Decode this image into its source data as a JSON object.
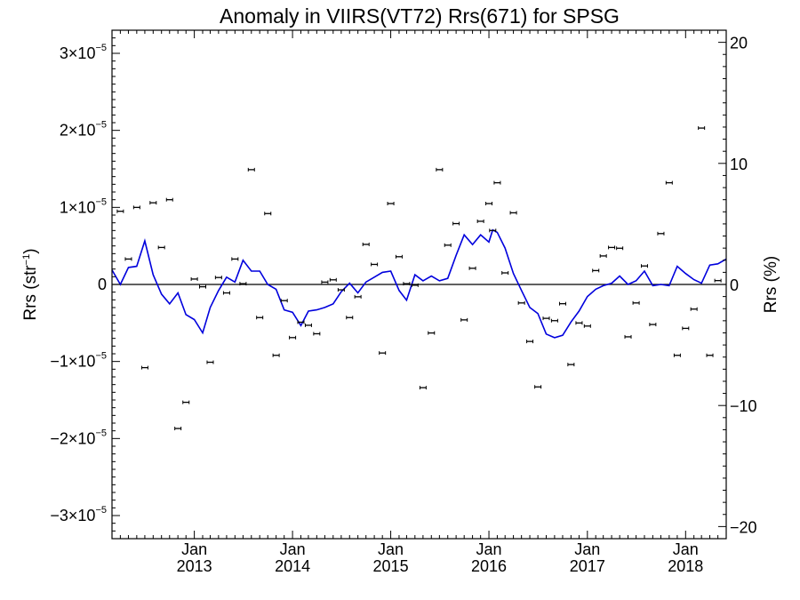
{
  "chart_data": {
    "type": "line",
    "title": "Anomaly in VIIRS(VT72) Rrs(671) for SPSG",
    "ylabel_left": "Rrs (str",
    "ylabel_left_sup": "−1",
    "ylabel_left_close": ")",
    "ylabel_right": "Rrs (%)",
    "y_left_range": [
      -3.3e-05,
      3.3e-05
    ],
    "y_right_range": [
      -21,
      21
    ],
    "x_range": [
      "2012-03-01",
      "2018-06-01"
    ],
    "left_ticks": [
      {
        "value": 3e-05,
        "mant": "3×10",
        "exp": "−5"
      },
      {
        "value": 2e-05,
        "mant": "2×10",
        "exp": "−5"
      },
      {
        "value": 1e-05,
        "mant": "1×10",
        "exp": "−5"
      },
      {
        "value": 0,
        "mant": "0",
        "exp": ""
      },
      {
        "value": -1e-05,
        "mant": "−1×10",
        "exp": "−5"
      },
      {
        "value": -2e-05,
        "mant": "−2×10",
        "exp": "−5"
      },
      {
        "value": -3e-05,
        "mant": "−3×10",
        "exp": "−5"
      }
    ],
    "right_ticks": [
      {
        "value": 20,
        "label": "20"
      },
      {
        "value": 10,
        "label": "10"
      },
      {
        "value": 0,
        "label": "0"
      },
      {
        "value": -10,
        "label": "−10"
      },
      {
        "value": -20,
        "label": "−20"
      }
    ],
    "x_ticks": [
      {
        "date": "2013-01-01",
        "month": "Jan",
        "year": "2013"
      },
      {
        "date": "2014-01-01",
        "month": "Jan",
        "year": "2014"
      },
      {
        "date": "2015-01-01",
        "month": "Jan",
        "year": "2015"
      },
      {
        "date": "2016-01-01",
        "month": "Jan",
        "year": "2016"
      },
      {
        "date": "2017-01-01",
        "month": "Jan",
        "year": "2017"
      },
      {
        "date": "2018-01-01",
        "month": "Jan",
        "year": "2018"
      }
    ],
    "zero_line": true,
    "monthly_anomaly": {
      "name": "",
      "style": "points with error bars",
      "color": "#000000",
      "points": [
        {
          "x": "2012-04-01",
          "y": 9.5e-06
        },
        {
          "x": "2012-05-01",
          "y": 3.3e-06
        },
        {
          "x": "2012-06-01",
          "y": 1e-05
        },
        {
          "x": "2012-07-01",
          "y": -1.08e-05
        },
        {
          "x": "2012-08-01",
          "y": 1.06e-05
        },
        {
          "x": "2012-09-01",
          "y": 4.8e-06
        },
        {
          "x": "2012-10-01",
          "y": 1.1e-05
        },
        {
          "x": "2012-11-01",
          "y": -1.87e-05
        },
        {
          "x": "2012-12-01",
          "y": -1.53e-05
        },
        {
          "x": "2013-01-01",
          "y": 7e-07
        },
        {
          "x": "2013-02-01",
          "y": -3e-07
        },
        {
          "x": "2013-03-01",
          "y": -1.01e-05
        },
        {
          "x": "2013-04-01",
          "y": 9e-07
        },
        {
          "x": "2013-05-01",
          "y": -1.1e-06
        },
        {
          "x": "2013-06-01",
          "y": 3.3e-06
        },
        {
          "x": "2013-07-01",
          "y": 1e-07
        },
        {
          "x": "2013-08-01",
          "y": 1.49e-05
        },
        {
          "x": "2013-09-01",
          "y": -4.3e-06
        },
        {
          "x": "2013-10-01",
          "y": 9.2e-06
        },
        {
          "x": "2013-11-01",
          "y": -9.2e-06
        },
        {
          "x": "2013-12-01",
          "y": -2.1e-06
        },
        {
          "x": "2014-01-01",
          "y": -6.9e-06
        },
        {
          "x": "2014-02-01",
          "y": -4.9e-06
        },
        {
          "x": "2014-03-01",
          "y": -5.3e-06
        },
        {
          "x": "2014-04-01",
          "y": -6.4e-06
        },
        {
          "x": "2014-05-01",
          "y": 3e-07
        },
        {
          "x": "2014-06-01",
          "y": 6e-07
        },
        {
          "x": "2014-07-01",
          "y": -7e-07
        },
        {
          "x": "2014-08-01",
          "y": -4.3e-06
        },
        {
          "x": "2014-09-01",
          "y": -1.6e-06
        },
        {
          "x": "2014-10-01",
          "y": 5.2e-06
        },
        {
          "x": "2014-11-01",
          "y": 2.6e-06
        },
        {
          "x": "2014-12-01",
          "y": -8.9e-06
        },
        {
          "x": "2015-01-01",
          "y": 1.05e-05
        },
        {
          "x": "2015-02-01",
          "y": 3.6e-06
        },
        {
          "x": "2015-03-01",
          "y": 1e-07
        },
        {
          "x": "2015-04-01",
          "y": -1e-07
        },
        {
          "x": "2015-05-01",
          "y": -1.34e-05
        },
        {
          "x": "2015-06-01",
          "y": -6.3e-06
        },
        {
          "x": "2015-07-01",
          "y": 1.49e-05
        },
        {
          "x": "2015-08-01",
          "y": 5.1e-06
        },
        {
          "x": "2015-09-01",
          "y": 7.9e-06
        },
        {
          "x": "2015-10-01",
          "y": -4.6e-06
        },
        {
          "x": "2015-11-01",
          "y": 2.1e-06
        },
        {
          "x": "2015-12-01",
          "y": 8.2e-06
        },
        {
          "x": "2016-01-01",
          "y": 1.05e-05
        },
        {
          "x": "2016-01-15",
          "y": 7e-06
        },
        {
          "x": "2016-02-01",
          "y": 1.32e-05
        },
        {
          "x": "2016-03-01",
          "y": 1.5e-06
        },
        {
          "x": "2016-04-01",
          "y": 9.3e-06
        },
        {
          "x": "2016-05-01",
          "y": -2.4e-06
        },
        {
          "x": "2016-06-01",
          "y": -7.4e-06
        },
        {
          "x": "2016-07-01",
          "y": -1.33e-05
        },
        {
          "x": "2016-08-01",
          "y": -4.4e-06
        },
        {
          "x": "2016-09-01",
          "y": -4.7e-06
        },
        {
          "x": "2016-10-01",
          "y": -2.5e-06
        },
        {
          "x": "2016-11-01",
          "y": -1.04e-05
        },
        {
          "x": "2016-12-01",
          "y": -5e-06
        },
        {
          "x": "2017-01-01",
          "y": -5.4e-06
        },
        {
          "x": "2017-02-01",
          "y": 1.8e-06
        },
        {
          "x": "2017-03-01",
          "y": 3.7e-06
        },
        {
          "x": "2017-04-01",
          "y": 4.8e-06
        },
        {
          "x": "2017-05-01",
          "y": 4.7e-06
        },
        {
          "x": "2017-06-01",
          "y": -6.8e-06
        },
        {
          "x": "2017-07-01",
          "y": -2.4e-06
        },
        {
          "x": "2017-08-01",
          "y": 2.4e-06
        },
        {
          "x": "2017-09-01",
          "y": -5.2e-06
        },
        {
          "x": "2017-10-01",
          "y": 6.6e-06
        },
        {
          "x": "2017-11-01",
          "y": 1.32e-05
        },
        {
          "x": "2017-12-01",
          "y": -9.2e-06
        },
        {
          "x": "2018-01-01",
          "y": -5.7e-06
        },
        {
          "x": "2018-02-01",
          "y": -3.2e-06
        },
        {
          "x": "2018-03-01",
          "y": 2.03e-05
        },
        {
          "x": "2018-04-01",
          "y": -9.2e-06
        },
        {
          "x": "2018-05-01",
          "y": 5e-07
        }
      ]
    },
    "percent_anomaly": {
      "name": "",
      "style": "line",
      "color": "#0000dd",
      "points": [
        {
          "x": "2012-03-01",
          "y": 1.2
        },
        {
          "x": "2012-04-01",
          "y": 0.0
        },
        {
          "x": "2012-05-01",
          "y": 1.4
        },
        {
          "x": "2012-06-01",
          "y": 1.5
        },
        {
          "x": "2012-07-01",
          "y": 3.6
        },
        {
          "x": "2012-08-01",
          "y": 0.8
        },
        {
          "x": "2012-09-01",
          "y": -0.8
        },
        {
          "x": "2012-10-01",
          "y": -1.6
        },
        {
          "x": "2012-11-01",
          "y": -0.7
        },
        {
          "x": "2012-12-01",
          "y": -2.5
        },
        {
          "x": "2013-01-01",
          "y": -2.9
        },
        {
          "x": "2013-02-01",
          "y": -4.0
        },
        {
          "x": "2013-03-01",
          "y": -1.9
        },
        {
          "x": "2013-04-01",
          "y": -0.5
        },
        {
          "x": "2013-05-01",
          "y": 0.6
        },
        {
          "x": "2013-06-01",
          "y": 0.2
        },
        {
          "x": "2013-07-01",
          "y": 2.0
        },
        {
          "x": "2013-08-01",
          "y": 1.1
        },
        {
          "x": "2013-09-01",
          "y": 1.1
        },
        {
          "x": "2013-10-01",
          "y": 0.0
        },
        {
          "x": "2013-11-01",
          "y": -0.4
        },
        {
          "x": "2013-12-01",
          "y": -2.1
        },
        {
          "x": "2014-01-01",
          "y": -2.3
        },
        {
          "x": "2014-02-01",
          "y": -3.4
        },
        {
          "x": "2014-03-01",
          "y": -2.2
        },
        {
          "x": "2014-04-01",
          "y": -2.1
        },
        {
          "x": "2014-05-01",
          "y": -1.9
        },
        {
          "x": "2014-06-01",
          "y": -1.6
        },
        {
          "x": "2014-07-01",
          "y": -0.6
        },
        {
          "x": "2014-08-01",
          "y": 0.1
        },
        {
          "x": "2014-09-01",
          "y": -0.7
        },
        {
          "x": "2014-10-01",
          "y": 0.2
        },
        {
          "x": "2014-11-01",
          "y": 0.6
        },
        {
          "x": "2014-12-01",
          "y": 1.0
        },
        {
          "x": "2015-01-01",
          "y": 1.1
        },
        {
          "x": "2015-02-01",
          "y": -0.5
        },
        {
          "x": "2015-03-01",
          "y": -1.3
        },
        {
          "x": "2015-04-01",
          "y": 0.8
        },
        {
          "x": "2015-05-01",
          "y": 0.3
        },
        {
          "x": "2015-06-01",
          "y": 0.7
        },
        {
          "x": "2015-07-01",
          "y": 0.3
        },
        {
          "x": "2015-08-01",
          "y": 0.5
        },
        {
          "x": "2015-09-01",
          "y": 2.4
        },
        {
          "x": "2015-10-01",
          "y": 4.1
        },
        {
          "x": "2015-11-01",
          "y": 3.3
        },
        {
          "x": "2015-12-01",
          "y": 4.1
        },
        {
          "x": "2016-01-01",
          "y": 3.5
        },
        {
          "x": "2016-01-15",
          "y": 4.5
        },
        {
          "x": "2016-02-01",
          "y": 4.3
        },
        {
          "x": "2016-03-01",
          "y": 3.0
        },
        {
          "x": "2016-04-01",
          "y": 0.9
        },
        {
          "x": "2016-05-01",
          "y": -0.5
        },
        {
          "x": "2016-06-01",
          "y": -1.9
        },
        {
          "x": "2016-07-01",
          "y": -2.4
        },
        {
          "x": "2016-08-01",
          "y": -4.1
        },
        {
          "x": "2016-09-01",
          "y": -4.4
        },
        {
          "x": "2016-10-01",
          "y": -4.2
        },
        {
          "x": "2016-11-01",
          "y": -3.1
        },
        {
          "x": "2016-12-01",
          "y": -2.2
        },
        {
          "x": "2017-01-01",
          "y": -1.0
        },
        {
          "x": "2017-02-01",
          "y": -0.4
        },
        {
          "x": "2017-03-01",
          "y": -0.1
        },
        {
          "x": "2017-04-01",
          "y": 0.1
        },
        {
          "x": "2017-05-01",
          "y": 0.7
        },
        {
          "x": "2017-06-01",
          "y": 0.0
        },
        {
          "x": "2017-07-01",
          "y": 0.3
        },
        {
          "x": "2017-08-01",
          "y": 1.1
        },
        {
          "x": "2017-09-01",
          "y": -0.1
        },
        {
          "x": "2017-10-01",
          "y": 0.0
        },
        {
          "x": "2017-11-01",
          "y": -0.1
        },
        {
          "x": "2017-12-01",
          "y": 1.5
        },
        {
          "x": "2018-01-01",
          "y": 0.9
        },
        {
          "x": "2018-02-01",
          "y": 0.4
        },
        {
          "x": "2018-03-01",
          "y": 0.1
        },
        {
          "x": "2018-04-01",
          "y": 1.6
        },
        {
          "x": "2018-05-01",
          "y": 1.7
        },
        {
          "x": "2018-06-01",
          "y": 2.1
        }
      ]
    }
  }
}
